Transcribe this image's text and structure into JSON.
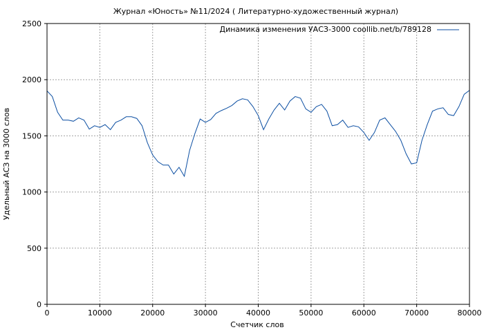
{
  "chart_data": {
    "type": "line",
    "title": "Журнал «Юность» №11/2024 ( Литературно-художественный журнал)",
    "xlabel": "Счетчик слов",
    "ylabel": "Удельный АСЗ на 3000 слов",
    "xlim": [
      0,
      80000
    ],
    "ylim": [
      0,
      2500
    ],
    "xticks": [
      0,
      10000,
      20000,
      30000,
      40000,
      50000,
      60000,
      70000,
      80000
    ],
    "xtick_labels": [
      "0",
      "10000",
      "20000",
      "30000",
      "40000",
      "50000",
      "60000",
      "70000",
      "80000"
    ],
    "yticks": [
      0,
      500,
      1000,
      1500,
      2000,
      2500
    ],
    "ytick_labels": [
      "0",
      "500",
      "1000",
      "1500",
      "2000",
      "2500"
    ],
    "grid": true,
    "legend_position": "top-right",
    "series": [
      {
        "name": "Динамика изменения УАСЗ-3000 coollib.net/b/789128",
        "color": "#0b4ea2",
        "x": [
          0,
          1000,
          2000,
          3000,
          4000,
          5000,
          6000,
          7000,
          8000,
          9000,
          10000,
          11000,
          12000,
          13000,
          14000,
          15000,
          16000,
          17000,
          18000,
          19000,
          20000,
          21000,
          22000,
          23000,
          24000,
          25000,
          26000,
          27000,
          28000,
          29000,
          30000,
          31000,
          32000,
          33000,
          34000,
          35000,
          36000,
          37000,
          38000,
          39000,
          40000,
          41000,
          42000,
          43000,
          44000,
          45000,
          46000,
          47000,
          48000,
          49000,
          50000,
          51000,
          52000,
          53000,
          54000,
          55000,
          56000,
          57000,
          58000,
          59000,
          60000,
          61000,
          62000,
          63000,
          64000,
          65000,
          66000,
          67000,
          68000,
          69000,
          70000,
          71000,
          72000,
          73000,
          74000,
          75000,
          76000,
          77000,
          78000,
          79000,
          80000
        ],
        "y": [
          1900,
          1850,
          1710,
          1640,
          1640,
          1630,
          1660,
          1640,
          1560,
          1590,
          1575,
          1600,
          1555,
          1620,
          1640,
          1670,
          1670,
          1655,
          1590,
          1440,
          1330,
          1270,
          1240,
          1240,
          1160,
          1220,
          1140,
          1370,
          1520,
          1650,
          1620,
          1645,
          1700,
          1725,
          1745,
          1770,
          1810,
          1830,
          1820,
          1760,
          1680,
          1555,
          1650,
          1730,
          1790,
          1730,
          1810,
          1850,
          1835,
          1740,
          1710,
          1760,
          1780,
          1720,
          1590,
          1600,
          1640,
          1575,
          1590,
          1580,
          1530,
          1460,
          1530,
          1640,
          1660,
          1600,
          1540,
          1460,
          1340,
          1250,
          1260,
          1460,
          1600,
          1720,
          1740,
          1750,
          1690,
          1680,
          1760,
          1870,
          1905
        ]
      }
    ]
  }
}
